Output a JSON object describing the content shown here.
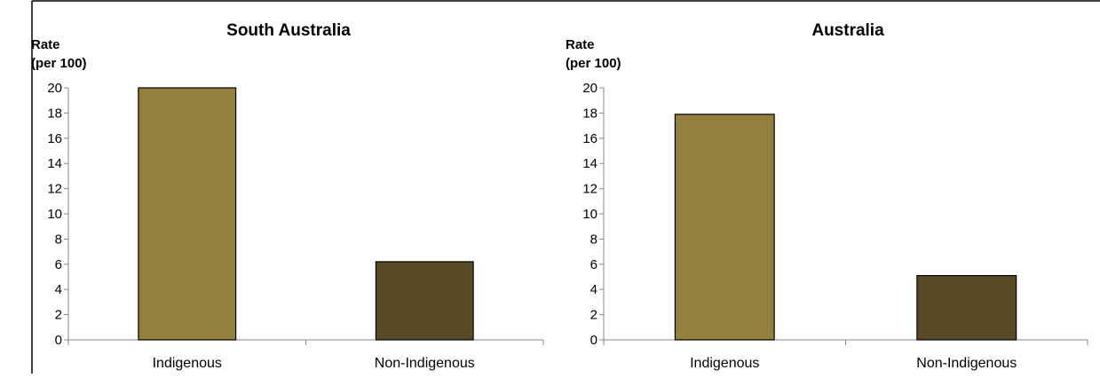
{
  "chart_data": [
    {
      "type": "bar",
      "title": "South Australia",
      "ylabel": [
        "Rate",
        "(per 100)"
      ],
      "categories": [
        "Indigenous",
        "Non-Indigenous"
      ],
      "values": [
        20.0,
        6.2
      ],
      "ylim": [
        0,
        20
      ],
      "yticks": [
        0,
        2,
        4,
        6,
        8,
        10,
        12,
        14,
        16,
        18,
        20
      ],
      "bar_colors": [
        "#94803e",
        "#584a22"
      ],
      "grid": false,
      "legend": "none"
    },
    {
      "type": "bar",
      "title": "Australia",
      "ylabel": [
        "Rate",
        "(per 100)"
      ],
      "categories": [
        "Indigenous",
        "Non-Indigenous"
      ],
      "values": [
        17.9,
        5.1
      ],
      "ylim": [
        0,
        20
      ],
      "yticks": [
        0,
        2,
        4,
        6,
        8,
        10,
        12,
        14,
        16,
        18,
        20
      ],
      "bar_colors": [
        "#94803e",
        "#584a22"
      ],
      "grid": false,
      "legend": "none"
    }
  ]
}
